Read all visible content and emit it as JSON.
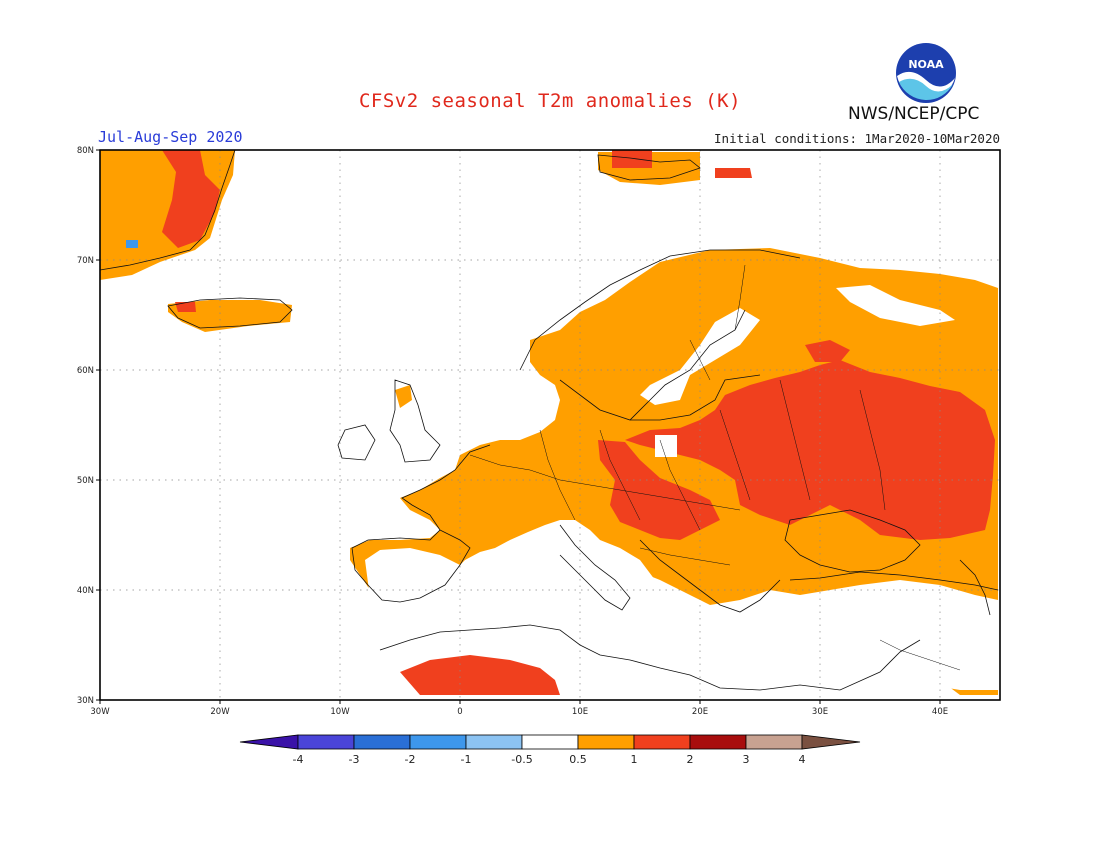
{
  "title": "CFSv2 seasonal T2m anomalies (K)",
  "season": "Jul-Aug-Sep 2020",
  "initial_conditions": "Initial conditions: 1Mar2020-10Mar2020",
  "agency": "NWS/NCEP/CPC",
  "logo": {
    "name": "noaa-logo",
    "text": "NOAA"
  },
  "map": {
    "lon_range": [
      -30,
      45
    ],
    "lat_range": [
      30,
      80
    ],
    "lon_ticks": [
      "30W",
      "20W",
      "10W",
      "0",
      "10E",
      "20E",
      "30E",
      "40E"
    ],
    "lat_ticks": [
      "30N",
      "40N",
      "50N",
      "60N",
      "70N",
      "80N"
    ],
    "grid": "dotted"
  },
  "legend": {
    "labels": [
      "-4",
      "-3",
      "-2",
      "-1",
      "-0.5",
      "0.5",
      "1",
      "2",
      "3",
      "4"
    ],
    "colors": [
      "#3a12a8",
      "#4a44d8",
      "#2a6fd6",
      "#3d97ec",
      "#8cc3f2",
      "#ffffff",
      "#ff9f00",
      "#f0401e",
      "#a80d0d",
      "#c8a291",
      "#7a5040"
    ]
  },
  "anomaly_regions": {
    "orange": "#ff9f00",
    "red": "#f0401e",
    "darkred": "#a80d0d",
    "blue": "#3d97ec"
  }
}
